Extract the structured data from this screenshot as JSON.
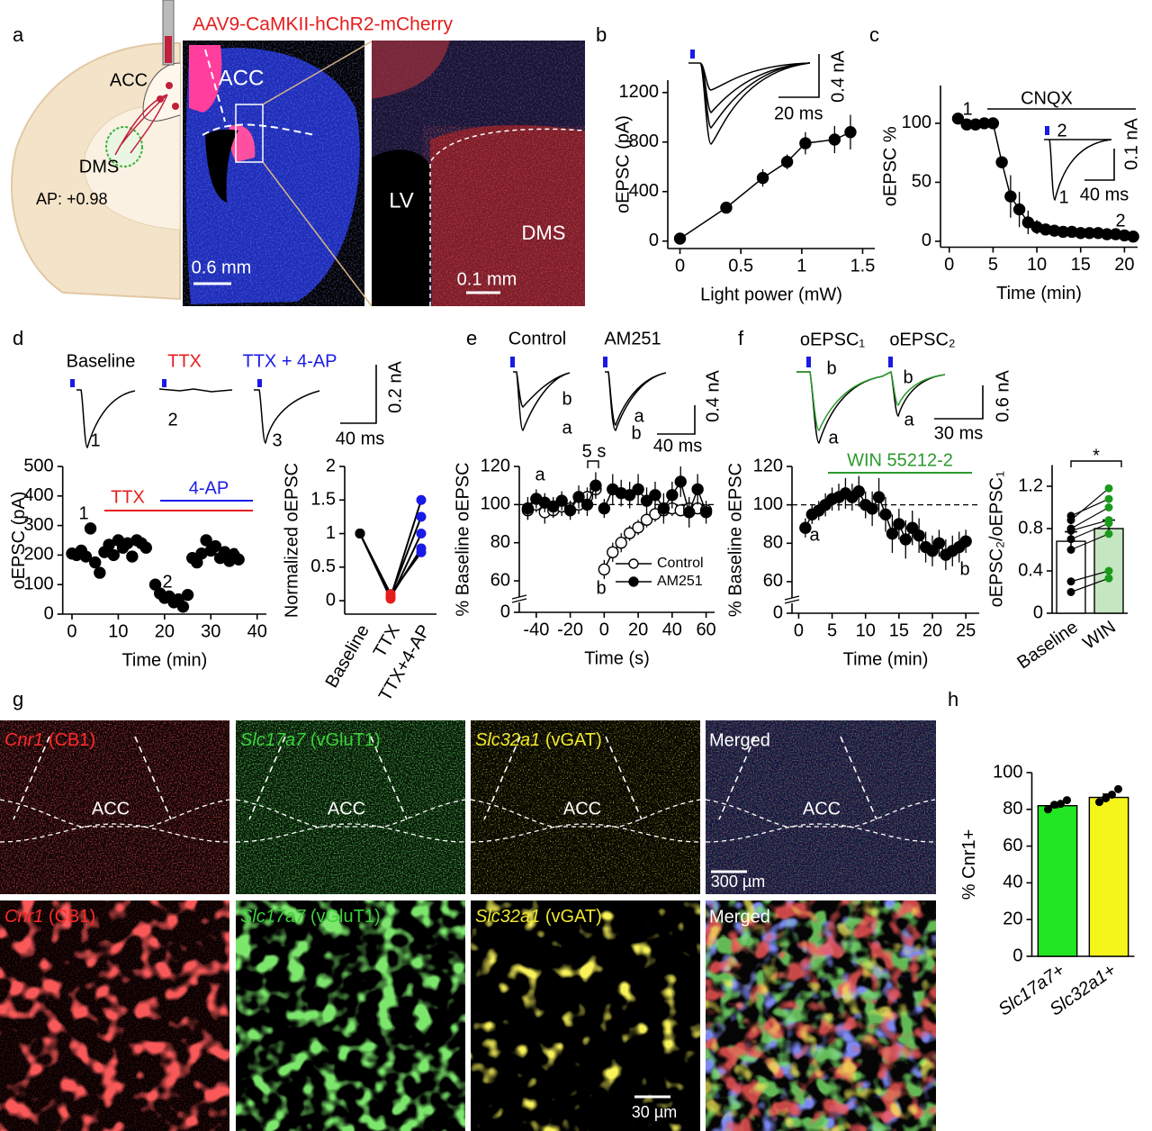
{
  "figure": {
    "panels": [
      "a",
      "b",
      "c",
      "d",
      "e",
      "f",
      "g",
      "h"
    ]
  },
  "panel_a": {
    "virus": "AAV9-CaMKII-hChR2-mCherry",
    "acc": "ACC",
    "dms": "DMS",
    "ap": "AP: +0.98",
    "scale_slice": "0.6 mm",
    "lv": "LV",
    "scale_zoom": "0.1 mm"
  },
  "panel_g": {
    "markers": [
      {
        "gene": "Cnr1",
        "label": "(CB1)"
      },
      {
        "gene": "Slc17a7",
        "label": "(vGluT1)"
      },
      {
        "gene": "Slc32a1",
        "label": "(vGAT)"
      }
    ],
    "merged": "Merged",
    "region": "ACC",
    "scale_top": "300 µm",
    "scale_bottom": "30 µm"
  },
  "chart_data": [
    {
      "type": "line",
      "xlabel": "Light power (mW)",
      "ylabel": "oEPSC (pA)",
      "x": [
        0,
        0.38,
        0.68,
        0.88,
        1.03,
        1.27,
        1.4
      ],
      "series": [
        {
          "color": "#000000",
          "values": [
            20,
            270,
            510,
            640,
            790,
            820,
            880
          ],
          "errors": [
            5,
            40,
            70,
            60,
            90,
            110,
            140
          ]
        }
      ],
      "connect": true,
      "xlim": [
        -0.1,
        1.6
      ],
      "xticks": [
        0,
        0.5,
        1,
        1.5
      ],
      "ylim": [
        -60,
        1300
      ],
      "yticks": [
        0,
        400,
        800,
        1200
      ],
      "annotations": [
        "20 ms",
        "0.4 nA"
      ]
    },
    {
      "type": "line",
      "xlabel": "Time (min)",
      "ylabel": "oEPSC %",
      "x": [
        1,
        2,
        3,
        4,
        5,
        6,
        7,
        8,
        9,
        10,
        11,
        12,
        13,
        14,
        15,
        16,
        17,
        18,
        19,
        20,
        21
      ],
      "series": [
        {
          "color": "#000000",
          "values": [
            104,
            99,
            99,
            100,
            100,
            67,
            38,
            27,
            16,
            12,
            10,
            9,
            8,
            8,
            7,
            7,
            7,
            6,
            6,
            5,
            4
          ],
          "errors": [
            4,
            2,
            2,
            2,
            3,
            5,
            18,
            15,
            10,
            6,
            4,
            3,
            3,
            3,
            2,
            2,
            2,
            2,
            2,
            2,
            2
          ]
        }
      ],
      "connect": true,
      "xlim": [
        -1,
        21.5
      ],
      "xticks": [
        0,
        5,
        10,
        15,
        20
      ],
      "ylim": [
        -5,
        132
      ],
      "yticks": [
        0,
        50,
        100
      ],
      "annotations": [
        "CNQX",
        "1",
        "2",
        "2",
        "1",
        "40 ms",
        "0.1 nA"
      ]
    },
    {
      "type": "scatter",
      "xlabel": "Time (min)",
      "ylabel": "oEPSC (pA)",
      "x": [
        0,
        1,
        2,
        3,
        4,
        5,
        6,
        7,
        8,
        9,
        10,
        11,
        12,
        13,
        14,
        15,
        16,
        18,
        19,
        20,
        21,
        22,
        23,
        24,
        25,
        26,
        27,
        28,
        29,
        30,
        31,
        32,
        33,
        34,
        35,
        36
      ],
      "series": [
        {
          "color": "#000000",
          "values": [
            205,
            200,
            215,
            195,
            290,
            175,
            140,
            210,
            235,
            200,
            250,
            225,
            240,
            195,
            250,
            240,
            225,
            100,
            70,
            55,
            60,
            40,
            50,
            25,
            65,
            190,
            175,
            205,
            250,
            215,
            230,
            190,
            210,
            180,
            200,
            185
          ]
        }
      ],
      "xlim": [
        -2,
        42
      ],
      "xticks": [
        0,
        10,
        20,
        30,
        40
      ],
      "ylim": [
        0,
        500
      ],
      "yticks": [
        0,
        100,
        200,
        300,
        400,
        500
      ],
      "annotations": [
        "Baseline",
        "TTX",
        "TTX + 4-AP",
        "1",
        "2",
        "3",
        "40 ms",
        "0.2 nA",
        "1",
        "2",
        "3",
        "TTX",
        "4-AP"
      ]
    },
    {
      "type": "paired",
      "ylabel": "Normalized oEPSC",
      "categories": [
        "Baseline",
        "TTX",
        "TTX+4-AP"
      ],
      "category_colors": [
        "#000000",
        "#e51d1d",
        "#1a1ae6"
      ],
      "series": [
        {
          "values": [
            1,
            0.05,
            1.5
          ]
        },
        {
          "values": [
            1,
            0.07,
            1.25
          ]
        },
        {
          "values": [
            1,
            0.03,
            1.0
          ]
        },
        {
          "values": [
            1,
            0.06,
            0.78
          ]
        },
        {
          "values": [
            1,
            0.1,
            0.72
          ]
        }
      ],
      "ylim": [
        -0.2,
        2
      ],
      "yticks": [
        0,
        0.5,
        1,
        1.5,
        2
      ]
    },
    {
      "type": "line",
      "xlabel": "Time (s)",
      "ylabel": "% Baseline oEPSC",
      "x": [
        -45,
        -40,
        -35,
        -30,
        -25,
        -20,
        -15,
        -10,
        -5,
        -2.5,
        0,
        5,
        10,
        15,
        20,
        25,
        30,
        35,
        40,
        45,
        50,
        55,
        60
      ],
      "series": [
        {
          "name": "Control",
          "color": "#000000",
          "marker": "open",
          "values": [
            97,
            100,
            96,
            97,
            99,
            98,
            100,
            104,
            108,
            null,
            66,
            75,
            80,
            85,
            88,
            92,
            95,
            97,
            98,
            97,
            98,
            98,
            97
          ],
          "errors": [
            5,
            4,
            6,
            4,
            5,
            4,
            5,
            5,
            4,
            null,
            5,
            5,
            5,
            4,
            4,
            4,
            4,
            3,
            4,
            3,
            4,
            3,
            3
          ]
        },
        {
          "name": "AM251",
          "color": "#000000",
          "marker": "filled",
          "values": [
            98,
            103,
            101,
            99,
            102,
            97,
            104,
            100,
            110,
            null,
            98,
            108,
            106,
            105,
            108,
            102,
            105,
            98,
            105,
            112,
            96,
            108,
            96
          ],
          "errors": [
            6,
            5,
            5,
            5,
            5,
            5,
            6,
            6,
            7,
            null,
            5,
            8,
            7,
            7,
            8,
            7,
            7,
            8,
            7,
            8,
            8,
            8,
            6
          ]
        }
      ],
      "connect": true,
      "refline": 100,
      "legend": "bottom-right",
      "xlim": [
        -50,
        65
      ],
      "xticks": [
        -40,
        -20,
        0,
        20,
        40,
        60
      ],
      "ylim": [
        0,
        120
      ],
      "ybreak": [
        5,
        52
      ],
      "yticks": [
        0,
        60,
        80,
        100,
        120
      ],
      "annotations": [
        "b",
        "a",
        "a",
        "b",
        "40 ms",
        "0.4 nA",
        "5 s",
        "a",
        "b"
      ]
    },
    {
      "type": "line",
      "xlabel": "Time (min)",
      "ylabel": "% Baseline oEPSC",
      "x": [
        1,
        2,
        3,
        4,
        5,
        6,
        7,
        8,
        9,
        10,
        11,
        12,
        13,
        14,
        15,
        16,
        17,
        18,
        19,
        20,
        21,
        22,
        23,
        24,
        25
      ],
      "series": [
        {
          "color": "#000000",
          "values": [
            88,
            95,
            97,
            100,
            103,
            104,
            106,
            104,
            107,
            100,
            98,
            104,
            95,
            85,
            90,
            82,
            88,
            84,
            78,
            76,
            80,
            74,
            76,
            78,
            81
          ],
          "errors": [
            5,
            5,
            5,
            6,
            6,
            7,
            8,
            7,
            8,
            7,
            9,
            10,
            9,
            10,
            8,
            10,
            9,
            9,
            8,
            8,
            7,
            8,
            8,
            8,
            6
          ]
        }
      ],
      "connect": true,
      "refline": 100,
      "xlim": [
        -1,
        27
      ],
      "xticks": [
        0,
        5,
        10,
        15,
        20,
        25
      ],
      "ylim": [
        0,
        120
      ],
      "ybreak": [
        5,
        52
      ],
      "yticks": [
        0,
        60,
        80,
        100,
        120
      ],
      "annotations": [
        "oEPSC₁",
        "oEPSC₂",
        "b",
        "a",
        "b",
        "a",
        "30 ms",
        "0.6 nA",
        "WIN 55212-2",
        "a",
        "b"
      ]
    },
    {
      "type": "bar",
      "ylabel": "oEPSC₂/oEPSC₁",
      "categories": [
        "Baseline",
        "WIN"
      ],
      "values": [
        0.68,
        0.8
      ],
      "errors": [
        0.09,
        0.08
      ],
      "colors": [
        "#ffffff",
        "#c4e6c0"
      ],
      "points": [
        [
          0.88,
          0.92,
          0.8,
          0.78,
          0.7,
          0.6,
          0.3,
          0.2
        ],
        [
          1.18,
          1.08,
          1.0,
          0.88,
          0.85,
          0.75,
          0.4,
          0.33
        ]
      ],
      "point_colors": [
        "#000000",
        "#1a9a1a"
      ],
      "paired": true,
      "ylim": [
        0,
        1.4
      ],
      "yticks": [
        0,
        0.4,
        0.8,
        1.2
      ],
      "annotations": [
        "*"
      ]
    },
    {
      "type": "bar",
      "ylabel": "% Cnr1+",
      "categories": [
        "Slc17a7+",
        "Slc32a1+"
      ],
      "values": [
        82,
        86.5
      ],
      "errors": [
        1.5,
        1.8
      ],
      "colors": [
        "#22e622",
        "#f5f51c"
      ],
      "points": [
        [
          80,
          82.5,
          83,
          85
        ],
        [
          84,
          86,
          88,
          91
        ]
      ],
      "point_colors": [
        "#000000",
        "#000000"
      ],
      "ylim": [
        0,
        100
      ],
      "yticks": [
        0,
        20,
        40,
        60,
        80,
        100
      ]
    }
  ]
}
